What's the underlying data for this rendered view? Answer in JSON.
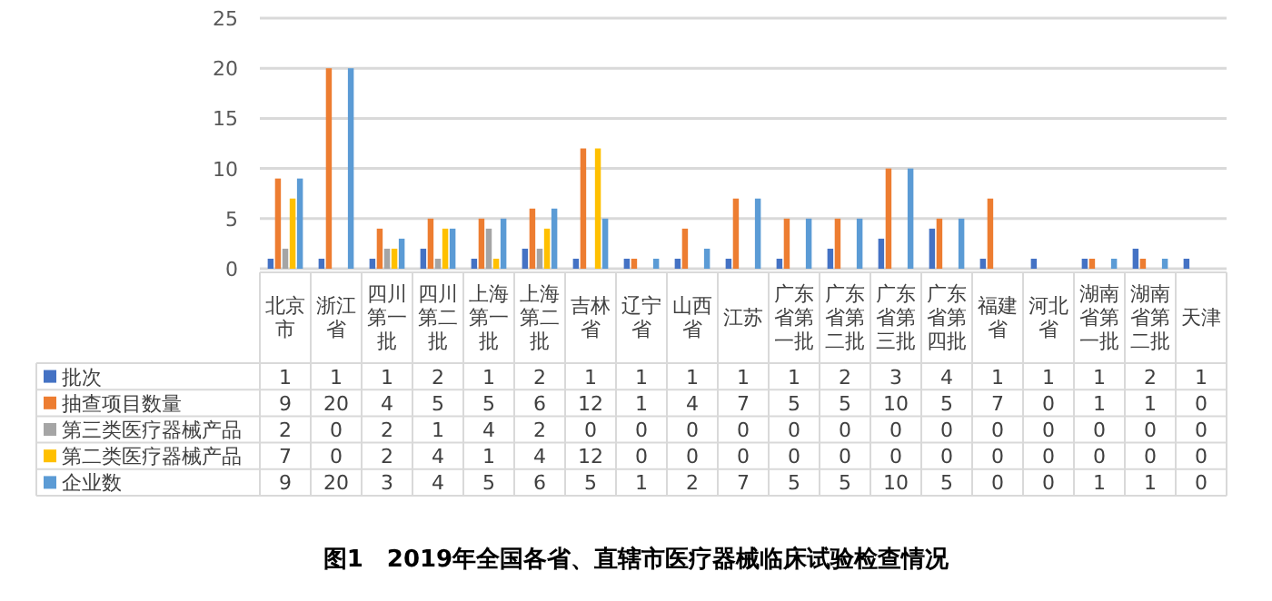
{
  "chart_data": {
    "type": "bar",
    "title": "图1　2019年全国各省、直辖市医疗器械临床试验检查情况",
    "categories": [
      "北京市",
      "浙江省",
      "四川第一批",
      "四川第二批",
      "上海第一批",
      "上海第二批",
      "吉林省",
      "辽宁省",
      "山西省",
      "江苏",
      "广东省第一批",
      "广东省第二批",
      "广东省第三批",
      "广东省第四批",
      "福建省",
      "河北省",
      "湖南省第一批",
      "湖南省第二批",
      "天津"
    ],
    "series": [
      {
        "name": "批次",
        "color": "#4472c4",
        "values": [
          1,
          1,
          1,
          2,
          1,
          2,
          1,
          1,
          1,
          1,
          1,
          2,
          3,
          4,
          1,
          1,
          1,
          2,
          1
        ]
      },
      {
        "name": "抽查项目数量",
        "color": "#ed7d31",
        "values": [
          9,
          20,
          4,
          5,
          5,
          6,
          12,
          1,
          4,
          7,
          5,
          5,
          10,
          5,
          7,
          0,
          1,
          1,
          0
        ]
      },
      {
        "name": "第三类医疗器械产品",
        "color": "#a5a5a5",
        "values": [
          2,
          0,
          2,
          1,
          4,
          2,
          0,
          0,
          0,
          0,
          0,
          0,
          0,
          0,
          0,
          0,
          0,
          0,
          0
        ]
      },
      {
        "name": "第二类医疗器械产品",
        "color": "#ffc000",
        "values": [
          7,
          0,
          2,
          4,
          1,
          4,
          12,
          0,
          0,
          0,
          0,
          0,
          0,
          0,
          0,
          0,
          0,
          0,
          0
        ]
      },
      {
        "name": "企业数",
        "color": "#5b9bd5",
        "values": [
          9,
          20,
          3,
          4,
          5,
          6,
          5,
          1,
          2,
          7,
          5,
          5,
          10,
          5,
          0,
          0,
          1,
          1,
          0
        ]
      }
    ],
    "ylim": [
      0,
      25
    ],
    "yticks": [
      0,
      5,
      10,
      15,
      20,
      25
    ],
    "grid": "y",
    "legend": "bottom",
    "data_labels": true
  }
}
